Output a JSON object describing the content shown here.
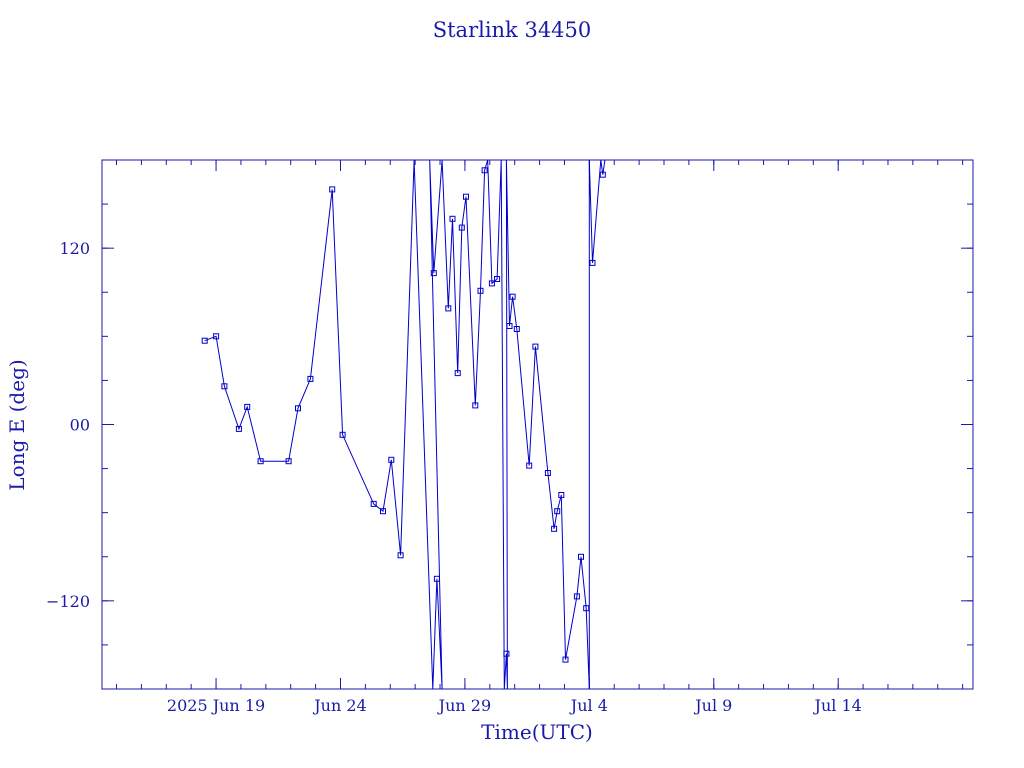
{
  "chart_data": {
    "type": "line",
    "title": "Starlink 34450",
    "xlabel": "Time(UTC)",
    "ylabel": "Long E (deg)",
    "xlim": [
      "2025-06-14 10:00",
      "2025-07-19 10:00"
    ],
    "ylim": [
      -180,
      180
    ],
    "x_ticks": [
      {
        "date": "2025-06-19",
        "label": "2025 Jun 19"
      },
      {
        "date": "2025-06-24",
        "label": "Jun 24"
      },
      {
        "date": "2025-06-29",
        "label": "Jun 29"
      },
      {
        "date": "2025-07-04",
        "label": "Jul  4"
      },
      {
        "date": "2025-07-09",
        "label": "Jul  9"
      },
      {
        "date": "2025-07-14",
        "label": "Jul 14"
      }
    ],
    "y_ticks": [
      {
        "value": 120,
        "label": "120"
      },
      {
        "value": 0,
        "label": "00"
      },
      {
        "value": -120,
        "label": "−120"
      }
    ],
    "grid": false,
    "series": [
      {
        "color": "#0000cc",
        "marker": "square",
        "points": [
          [
            "2025-06-18 13:00",
            57
          ],
          [
            "2025-06-19 00:00",
            60
          ],
          [
            "2025-06-19 08:00",
            26
          ],
          [
            "2025-06-19 22:00",
            -3
          ],
          [
            "2025-06-20 06:00",
            12
          ],
          [
            "2025-06-20 19:00",
            -25
          ],
          [
            "2025-06-21 22:00",
            -25
          ],
          [
            "2025-06-22 07:00",
            11
          ],
          [
            "2025-06-22 19:00",
            31
          ],
          [
            "2025-06-23 16:00",
            160
          ],
          [
            "2025-06-24 02:00",
            -7
          ],
          [
            "2025-06-25 08:00",
            -54
          ],
          [
            "2025-06-25 17:00",
            -59
          ],
          [
            "2025-06-26 01:00",
            -24
          ],
          [
            "2025-06-26 10:00",
            -89
          ],
          [
            "2025-06-26 23:00",
            180
          ],
          [
            "2025-06-27 17:00",
            -180
          ],
          [
            "2025-06-27 21:00",
            -105
          ],
          [
            "2025-06-28 02:00",
            -180
          ],
          [
            "2025-06-27 14:00",
            180
          ],
          [
            "2025-06-27 18:00",
            103
          ],
          [
            "2025-06-28 02:00",
            180
          ],
          [
            "2025-06-28 08:00",
            79
          ],
          [
            "2025-06-28 12:00",
            140
          ],
          [
            "2025-06-28 17:00",
            35
          ],
          [
            "2025-06-28 21:00",
            134
          ],
          [
            "2025-06-29 01:00",
            155
          ],
          [
            "2025-06-29 10:00",
            13
          ],
          [
            "2025-06-29 15:00",
            91
          ],
          [
            "2025-06-29 19:00",
            173
          ],
          [
            "2025-06-29 22:00",
            180
          ],
          [
            "2025-06-30 02:00",
            96
          ],
          [
            "2025-06-30 07:00",
            99
          ],
          [
            "2025-06-30 11:00",
            180
          ],
          [
            "2025-06-30 14:00",
            -180
          ],
          [
            "2025-06-30 16:00",
            -156
          ],
          [
            "2025-06-30 17:00",
            -180
          ],
          [
            "2025-06-30 16:00",
            180
          ],
          [
            "2025-06-30 19:00",
            67
          ],
          [
            "2025-06-30 22:00",
            87
          ],
          [
            "2025-07-01 02:00",
            65
          ],
          [
            "2025-07-01 14:00",
            -28
          ],
          [
            "2025-07-01 20:00",
            53
          ],
          [
            "2025-07-02 08:00",
            -33
          ],
          [
            "2025-07-02 14:00",
            -71
          ],
          [
            "2025-07-02 17:00",
            -59
          ],
          [
            "2025-07-02 21:00",
            -48
          ],
          [
            "2025-07-03 01:00",
            -160
          ],
          [
            "2025-07-03 12:00",
            -117
          ],
          [
            "2025-07-03 16:00",
            -90
          ],
          [
            "2025-07-03 21:00",
            -125
          ],
          [
            "2025-07-04 00:00",
            -180
          ],
          [
            "2025-07-04 00:00",
            180
          ],
          [
            "2025-07-04 03:00",
            110
          ],
          [
            "2025-07-04 11:00",
            180
          ],
          [
            "2025-07-04 13:00",
            170
          ],
          [
            "2025-07-04 15:00",
            180
          ]
        ]
      }
    ]
  }
}
